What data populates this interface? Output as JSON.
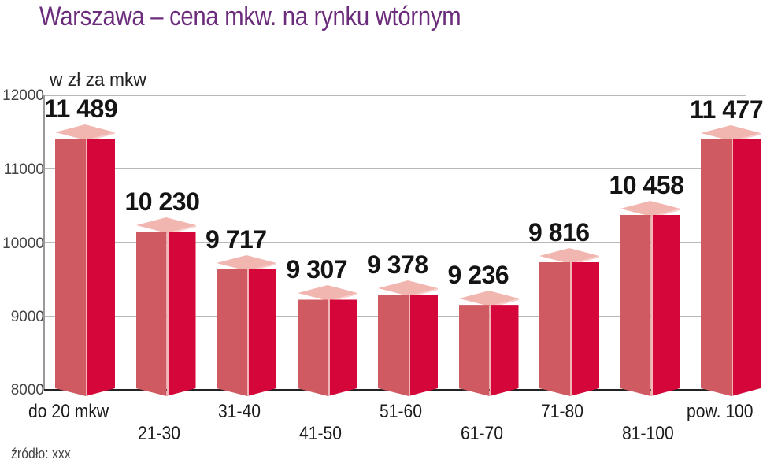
{
  "header": {
    "title": "Warszawa – cena mkw. na rynku wtórnym",
    "unit": "w zł za mkw"
  },
  "source": "źródło: xxx",
  "y_axis": {
    "ticks": [
      "12000",
      "11000",
      "10000",
      "9000",
      "8000"
    ]
  },
  "bars": [
    {
      "category": "do 20 mkw",
      "label": "11 489"
    },
    {
      "category": "21-30",
      "label": "10 230"
    },
    {
      "category": "31-40",
      "label": "9 717"
    },
    {
      "category": "41-50",
      "label": "9 307"
    },
    {
      "category": "51-60",
      "label": "9 378"
    },
    {
      "category": "61-70",
      "label": "9 236"
    },
    {
      "category": "71-80",
      "label": "9 816"
    },
    {
      "category": "81-100",
      "label": "10 458"
    },
    {
      "category": "pow. 100",
      "label": "11 477"
    }
  ],
  "colors": {
    "title": "#6b2c7b",
    "bar_left_face": "#cf5a61",
    "bar_right_face": "#d4063a",
    "bar_top_face": "#f2b6b1"
  },
  "chart_data": {
    "type": "bar",
    "title": "Warszawa – cena mkw. na rynku wtórnym",
    "subtitle": "w zł za mkw",
    "xlabel": "",
    "ylabel": "w zł za mkw",
    "categories": [
      "do 20 mkw",
      "21-30",
      "31-40",
      "41-50",
      "51-60",
      "61-70",
      "71-80",
      "81-100",
      "pow. 100"
    ],
    "values": [
      11489,
      10230,
      9717,
      9307,
      9378,
      9236,
      9816,
      10458,
      11477
    ],
    "ylim": [
      8000,
      12000
    ],
    "yticks": [
      8000,
      9000,
      10000,
      11000,
      12000
    ],
    "grid": true,
    "legend": null,
    "annotations": [
      "źródło: xxx"
    ]
  }
}
